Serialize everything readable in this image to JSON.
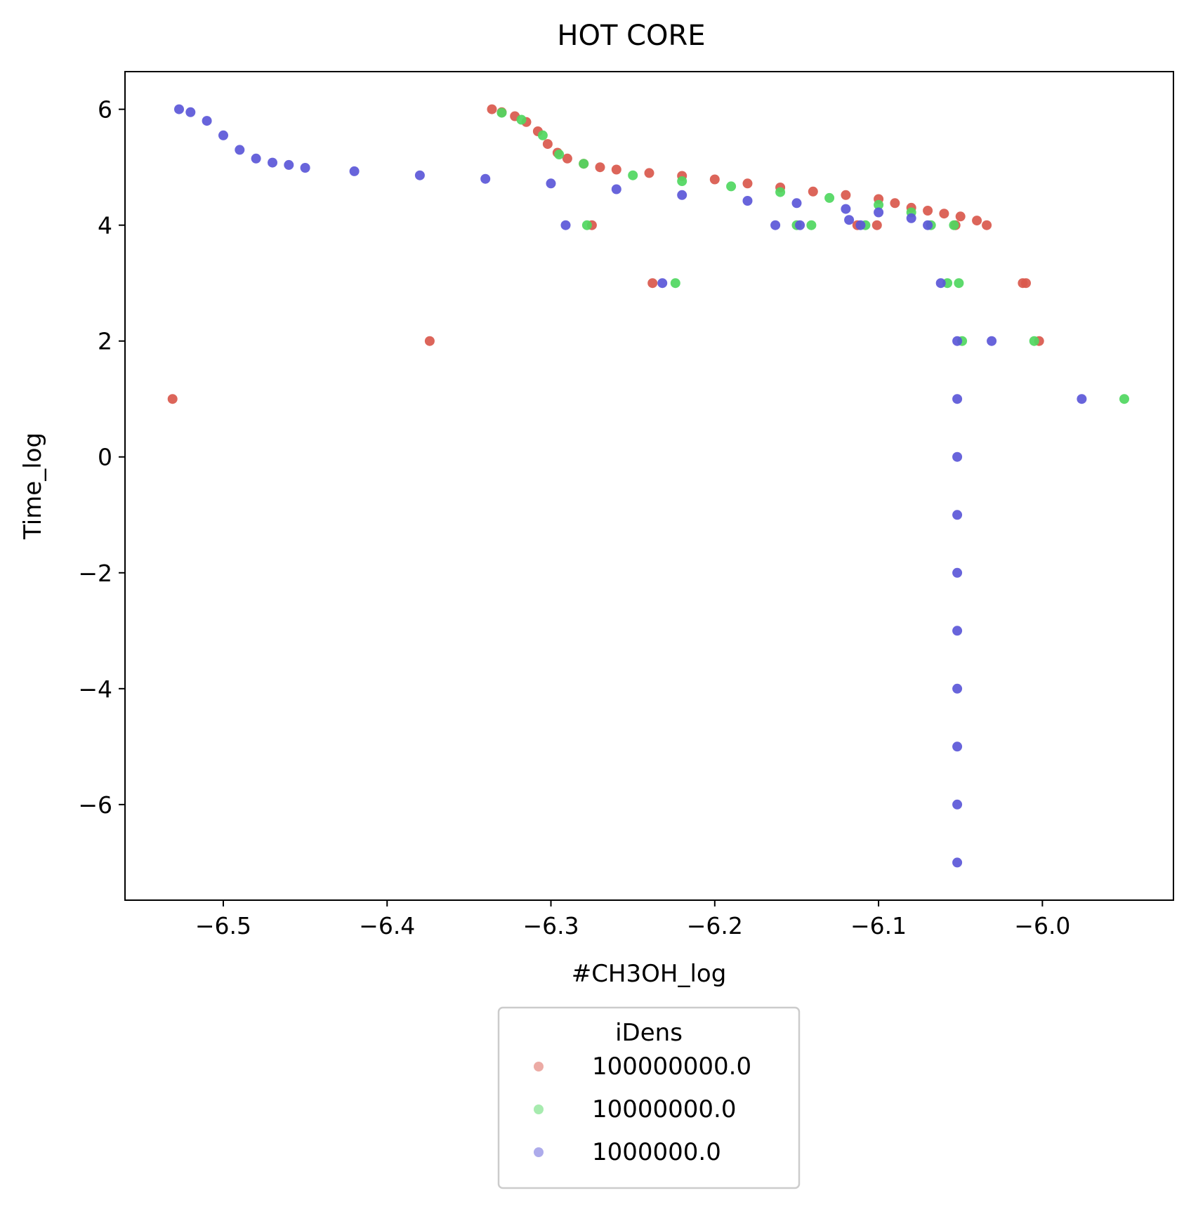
{
  "chart_data": {
    "type": "scatter",
    "title": "HOT CORE",
    "xlabel": "#CH3OH_log",
    "ylabel": "Time_log",
    "xlim": [
      -6.56,
      -5.92
    ],
    "ylim": [
      -7.65,
      6.65
    ],
    "xticks": [
      {
        "value": -6.5,
        "label": "−6.5"
      },
      {
        "value": -6.4,
        "label": "−6.4"
      },
      {
        "value": -6.3,
        "label": "−6.3"
      },
      {
        "value": -6.2,
        "label": "−6.2"
      },
      {
        "value": -6.1,
        "label": "−6.1"
      },
      {
        "value": -6.0,
        "label": "−6.0"
      }
    ],
    "yticks": [
      {
        "value": 6,
        "label": "6"
      },
      {
        "value": 4,
        "label": "4"
      },
      {
        "value": 2,
        "label": "2"
      },
      {
        "value": 0,
        "label": "0"
      },
      {
        "value": -2,
        "label": "−2"
      },
      {
        "value": -4,
        "label": "−4"
      },
      {
        "value": -6,
        "label": "−6"
      }
    ],
    "grid": false,
    "legend": {
      "title": "iDens",
      "placement": "below the plot, centered"
    },
    "series": [
      {
        "name": "100000000.0",
        "color": "#d9584c",
        "points": [
          [
            -6.336,
            6.0
          ],
          [
            -6.33,
            5.95
          ],
          [
            -6.322,
            5.88
          ],
          [
            -6.315,
            5.78
          ],
          [
            -6.308,
            5.62
          ],
          [
            -6.302,
            5.4
          ],
          [
            -6.296,
            5.25
          ],
          [
            -6.29,
            5.15
          ],
          [
            -6.28,
            5.06
          ],
          [
            -6.27,
            5.0
          ],
          [
            -6.26,
            4.96
          ],
          [
            -6.24,
            4.9
          ],
          [
            -6.22,
            4.85
          ],
          [
            -6.2,
            4.79
          ],
          [
            -6.18,
            4.72
          ],
          [
            -6.16,
            4.65
          ],
          [
            -6.14,
            4.58
          ],
          [
            -6.12,
            4.52
          ],
          [
            -6.1,
            4.45
          ],
          [
            -6.09,
            4.38
          ],
          [
            -6.08,
            4.3
          ],
          [
            -6.07,
            4.25
          ],
          [
            -6.06,
            4.2
          ],
          [
            -6.05,
            4.15
          ],
          [
            -6.04,
            4.08
          ],
          [
            -6.034,
            4.0
          ],
          [
            -6.053,
            4.0
          ],
          [
            -6.101,
            4.0
          ],
          [
            -6.113,
            4.0
          ],
          [
            -6.275,
            4.0
          ],
          [
            -6.238,
            3.0
          ],
          [
            -6.012,
            3.0
          ],
          [
            -6.01,
            3.0
          ],
          [
            -6.374,
            2.0
          ],
          [
            -6.002,
            2.0
          ],
          [
            -6.531,
            1.0
          ]
        ]
      },
      {
        "name": "10000000.0",
        "color": "#4fd760",
        "points": [
          [
            -6.33,
            5.94
          ],
          [
            -6.318,
            5.82
          ],
          [
            -6.305,
            5.55
          ],
          [
            -6.295,
            5.22
          ],
          [
            -6.28,
            5.06
          ],
          [
            -6.25,
            4.86
          ],
          [
            -6.22,
            4.76
          ],
          [
            -6.19,
            4.67
          ],
          [
            -6.16,
            4.57
          ],
          [
            -6.13,
            4.47
          ],
          [
            -6.1,
            4.35
          ],
          [
            -6.08,
            4.22
          ],
          [
            -6.068,
            4.0
          ],
          [
            -6.054,
            4.0
          ],
          [
            -6.141,
            4.0
          ],
          [
            -6.15,
            4.0
          ],
          [
            -6.108,
            4.0
          ],
          [
            -6.278,
            4.0
          ],
          [
            -6.224,
            3.0
          ],
          [
            -6.058,
            3.0
          ],
          [
            -6.051,
            3.0
          ],
          [
            -6.049,
            2.0
          ],
          [
            -6.005,
            2.0
          ],
          [
            -5.95,
            1.0
          ]
        ]
      },
      {
        "name": "1000000.0",
        "color": "#5b57d8",
        "points": [
          [
            -6.527,
            6.0
          ],
          [
            -6.52,
            5.95
          ],
          [
            -6.51,
            5.8
          ],
          [
            -6.5,
            5.55
          ],
          [
            -6.49,
            5.3
          ],
          [
            -6.48,
            5.15
          ],
          [
            -6.47,
            5.08
          ],
          [
            -6.46,
            5.04
          ],
          [
            -6.45,
            4.99
          ],
          [
            -6.42,
            4.93
          ],
          [
            -6.38,
            4.86
          ],
          [
            -6.34,
            4.8
          ],
          [
            -6.3,
            4.72
          ],
          [
            -6.26,
            4.62
          ],
          [
            -6.22,
            4.52
          ],
          [
            -6.18,
            4.42
          ],
          [
            -6.15,
            4.38
          ],
          [
            -6.12,
            4.28
          ],
          [
            -6.1,
            4.22
          ],
          [
            -6.08,
            4.12
          ],
          [
            -6.07,
            4.0
          ],
          [
            -6.118,
            4.09
          ],
          [
            -6.111,
            4.0
          ],
          [
            -6.148,
            4.0
          ],
          [
            -6.163,
            4.0
          ],
          [
            -6.291,
            4.0
          ],
          [
            -6.232,
            3.0
          ],
          [
            -6.062,
            3.0
          ],
          [
            -6.052,
            2.0
          ],
          [
            -6.031,
            2.0
          ],
          [
            -5.976,
            1.0
          ],
          [
            -6.052,
            1.0
          ],
          [
            -6.052,
            0.0
          ],
          [
            -6.052,
            -1.0
          ],
          [
            -6.052,
            -2.0
          ],
          [
            -6.052,
            -3.0
          ],
          [
            -6.052,
            -4.0
          ],
          [
            -6.052,
            -5.0
          ],
          [
            -6.052,
            -6.0
          ],
          [
            -6.052,
            -7.0
          ]
        ]
      }
    ]
  }
}
